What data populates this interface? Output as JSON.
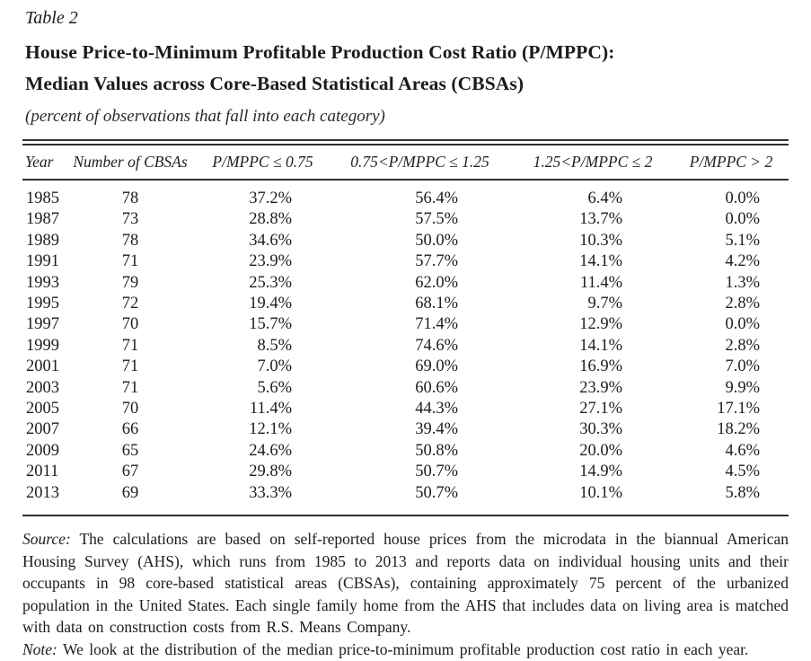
{
  "header": {
    "table_label": "Table 2",
    "title_line1": "House Price-to-Minimum Profitable Production Cost Ratio (P/MPPC):",
    "title_line2": "Median Values across Core-Based Statistical Areas (CBSAs)",
    "subtitle": "(percent of observations that fall into each category)"
  },
  "table": {
    "columns": [
      {
        "label": "Year"
      },
      {
        "label": "Number of CBSAs"
      },
      {
        "label": "P/MPPC ≤ 0.75"
      },
      {
        "label": "0.75<P/MPPC ≤ 1.25"
      },
      {
        "label": "1.25<P/MPPC ≤ 2"
      },
      {
        "label": "P/MPPC > 2"
      }
    ],
    "rows": [
      [
        "1985",
        "78",
        "37.2%",
        "56.4%",
        "6.4%",
        "0.0%"
      ],
      [
        "1987",
        "73",
        "28.8%",
        "57.5%",
        "13.7%",
        "0.0%"
      ],
      [
        "1989",
        "78",
        "34.6%",
        "50.0%",
        "10.3%",
        "5.1%"
      ],
      [
        "1991",
        "71",
        "23.9%",
        "57.7%",
        "14.1%",
        "4.2%"
      ],
      [
        "1993",
        "79",
        "25.3%",
        "62.0%",
        "11.4%",
        "1.3%"
      ],
      [
        "1995",
        "72",
        "19.4%",
        "68.1%",
        "9.7%",
        "2.8%"
      ],
      [
        "1997",
        "70",
        "15.7%",
        "71.4%",
        "12.9%",
        "0.0%"
      ],
      [
        "1999",
        "71",
        "8.5%",
        "74.6%",
        "14.1%",
        "2.8%"
      ],
      [
        "2001",
        "71",
        "7.0%",
        "69.0%",
        "16.9%",
        "7.0%"
      ],
      [
        "2003",
        "71",
        "5.6%",
        "60.6%",
        "23.9%",
        "9.9%"
      ],
      [
        "2005",
        "70",
        "11.4%",
        "44.3%",
        "27.1%",
        "17.1%"
      ],
      [
        "2007",
        "66",
        "12.1%",
        "39.4%",
        "30.3%",
        "18.2%"
      ],
      [
        "2009",
        "65",
        "24.6%",
        "50.8%",
        "20.0%",
        "4.6%"
      ],
      [
        "2011",
        "67",
        "29.8%",
        "50.7%",
        "14.9%",
        "4.5%"
      ],
      [
        "2013",
        "69",
        "33.3%",
        "50.7%",
        "10.1%",
        "5.8%"
      ]
    ]
  },
  "footer": {
    "source_label": "Source:",
    "source_text": "The calculations are based on self-reported house prices from the microdata in the biannual American Housing Survey (AHS), which runs from 1985 to 2013 and reports data on individual housing units and their occupants in 98 core-based statistical areas (CBSAs), containing approximately 75 percent of the urbanized population in the United States. Each single family home from the AHS that includes data on living area is matched with data on construction costs from R.S. Means Company.",
    "note_label": "Note:",
    "note_text": "We look at the distribution of the median price-to-minimum profitable production cost ratio in each year."
  },
  "chart_data": {
    "type": "table",
    "title": "House Price-to-Minimum Profitable Production Cost Ratio (P/MPPC): Median Values across Core-Based Statistical Areas (CBSAs)",
    "subtitle": "percent of observations that fall into each category",
    "x": [
      1985,
      1987,
      1989,
      1991,
      1993,
      1995,
      1997,
      1999,
      2001,
      2003,
      2005,
      2007,
      2009,
      2011,
      2013
    ],
    "xlabel": "Year",
    "series": [
      {
        "name": "Number of CBSAs",
        "values": [
          78,
          73,
          78,
          71,
          79,
          72,
          70,
          71,
          71,
          71,
          70,
          66,
          65,
          67,
          69
        ]
      },
      {
        "name": "P/MPPC ≤ 0.75 (%)",
        "values": [
          37.2,
          28.8,
          34.6,
          23.9,
          25.3,
          19.4,
          15.7,
          8.5,
          7.0,
          5.6,
          11.4,
          12.1,
          24.6,
          29.8,
          33.3
        ]
      },
      {
        "name": "0.75<P/MPPC ≤ 1.25 (%)",
        "values": [
          56.4,
          57.5,
          50.0,
          57.7,
          62.0,
          68.1,
          71.4,
          74.6,
          69.0,
          60.6,
          44.3,
          39.4,
          50.8,
          50.7,
          50.7
        ]
      },
      {
        "name": "1.25<P/MPPC ≤ 2 (%)",
        "values": [
          6.4,
          13.7,
          10.3,
          14.1,
          11.4,
          9.7,
          12.9,
          14.1,
          16.9,
          23.9,
          27.1,
          30.3,
          20.0,
          14.9,
          10.1
        ]
      },
      {
        "name": "P/MPPC > 2 (%)",
        "values": [
          0.0,
          0.0,
          5.1,
          4.2,
          1.3,
          2.8,
          0.0,
          2.8,
          7.0,
          9.9,
          17.1,
          18.2,
          4.6,
          4.5,
          5.8
        ]
      }
    ]
  }
}
